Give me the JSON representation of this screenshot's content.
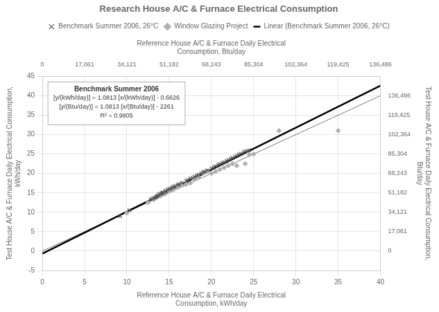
{
  "chart_data": {
    "type": "scatter",
    "title": "Research House A/C & Furnace Electrical Consumption",
    "xlabel": "Reference House A/C & Furnace Daily Electrical\nConsumption, kWh/day",
    "x2label": "Reference House A/C & Furnace Daily Electrical\nConsumption, Btu/day",
    "ylabel": "Test House A/C & Furnace Daily Electrical Consumption,\nkWh/day",
    "y2label": "Test House A/C & Furnace Daily Electrical Consumption,\nBtu/day",
    "annotations": [
      "Benchmark Summer 2006",
      "[y/(kWh/day)] = 1.0813 [x/(kWh/day)] - 0.6626",
      "[y/(Btu/day)] = 1.0813 [x/(Btu/day)] - 2261",
      "R² = 0.9805"
    ],
    "xlim": [
      0,
      40
    ],
    "xticks": [
      0,
      5,
      10,
      15,
      20,
      25,
      30,
      35,
      40
    ],
    "ylim": [
      -5,
      45
    ],
    "yticks": [
      -5,
      0,
      5,
      10,
      15,
      20,
      25,
      30,
      35,
      40,
      45
    ],
    "x2lim": [
      0,
      136485.6
    ],
    "x2ticks": [
      0,
      {
        "value": 17060.7,
        "label": "17,061"
      },
      {
        "value": 34121.4,
        "label": "34,121"
      },
      {
        "value": 51182.1,
        "label": "51,182"
      },
      {
        "value": 68242.8,
        "label": "68,243"
      },
      {
        "value": 85303.5,
        "label": "85,304"
      },
      {
        "value": 102364.2,
        "label": "102,364"
      },
      {
        "value": 119424.9,
        "label": "119,425"
      },
      {
        "value": 136485.6,
        "label": "136,486"
      }
    ],
    "y2lim": [
      -17060.7,
      153546.3
    ],
    "y2ticks": [
      0,
      {
        "value": 17060.7,
        "label": "17,061"
      },
      {
        "value": 34121.4,
        "label": "34,121"
      },
      {
        "value": 51182.1,
        "label": "51,182"
      },
      {
        "value": 68242.8,
        "label": "68,243"
      },
      {
        "value": 85303.5,
        "label": "85,304"
      },
      {
        "value": 102364.2,
        "label": "102,364"
      },
      {
        "value": 119424.9,
        "label": "119,425"
      },
      {
        "value": 136485.6,
        "label": "136,486"
      }
    ],
    "grid": true,
    "legend": "top",
    "series": [
      {
        "type": "line",
        "color": "#777777",
        "line_style": "solid",
        "x": [
          0,
          40
        ],
        "values": [
          0,
          40
        ]
      },
      {
        "name": "Linear (Benchmark Summer 2006, 26°C)",
        "type": "line",
        "color": "#000000",
        "line_style": "solid",
        "x": [
          0,
          40
        ],
        "values": [
          -0.6626,
          42.5894
        ]
      },
      {
        "name": "Window Glazing Project",
        "type": "scatter",
        "color": "#b0b0b0",
        "marker": "diamond",
        "x": [
          10.0,
          12.5,
          13.2,
          14.0,
          14.5,
          15.0,
          15.5,
          16.0,
          16.5,
          17.0,
          17.5,
          18.0,
          18.5,
          19.0,
          19.5,
          20.0,
          20.5,
          21.0,
          21.5,
          22.0,
          22.5,
          23.0,
          24.0,
          24.5,
          25.0,
          28.0,
          35.0
        ],
        "values": [
          9.8,
          12.5,
          13.3,
          14.2,
          14.7,
          15.5,
          15.8,
          16.5,
          17.0,
          17.2,
          17.5,
          18.5,
          19.0,
          20.0,
          20.5,
          20.0,
          20.5,
          21.0,
          21.5,
          22.0,
          22.5,
          22.0,
          22.5,
          24.8,
          25.0,
          31.0,
          31.0
        ]
      },
      {
        "name": "Benchmark Summer 2006, 26°C",
        "type": "scatter",
        "color": "#555555",
        "marker": "x",
        "x": [
          9.2,
          10.3,
          12.8,
          13.0,
          13.2,
          13.4,
          13.5,
          13.6,
          13.7,
          13.8,
          14.0,
          14.1,
          14.2,
          14.3,
          14.5,
          14.6,
          14.8,
          15.0,
          15.2,
          15.4,
          15.5,
          15.7,
          16.0,
          16.2,
          16.5,
          17.0,
          17.2,
          17.5,
          17.8,
          18.0,
          18.3,
          18.5,
          18.8,
          19.0,
          19.2,
          19.5,
          20.0,
          20.3,
          20.5,
          20.8,
          21.0,
          21.3,
          21.5,
          21.8,
          22.0,
          22.3,
          22.5,
          22.8,
          23.0,
          23.3,
          23.5,
          23.8,
          24.0,
          24.3,
          24.5
        ],
        "values": [
          9.0,
          10.5,
          13.3,
          13.5,
          13.7,
          13.8,
          14.0,
          14.2,
          14.3,
          14.6,
          14.7,
          14.9,
          15.0,
          15.1,
          15.3,
          15.5,
          15.8,
          16.0,
          16.2,
          16.4,
          16.6,
          16.8,
          17.1,
          17.3,
          17.6,
          18.1,
          18.3,
          18.7,
          18.9,
          19.2,
          19.5,
          19.7,
          20.0,
          20.3,
          20.5,
          20.8,
          21.3,
          21.6,
          21.9,
          22.2,
          22.4,
          22.7,
          22.9,
          23.2,
          23.5,
          23.8,
          24.0,
          24.3,
          24.6,
          24.9,
          25.1,
          25.4,
          25.7,
          25.8,
          26.0
        ]
      }
    ]
  }
}
